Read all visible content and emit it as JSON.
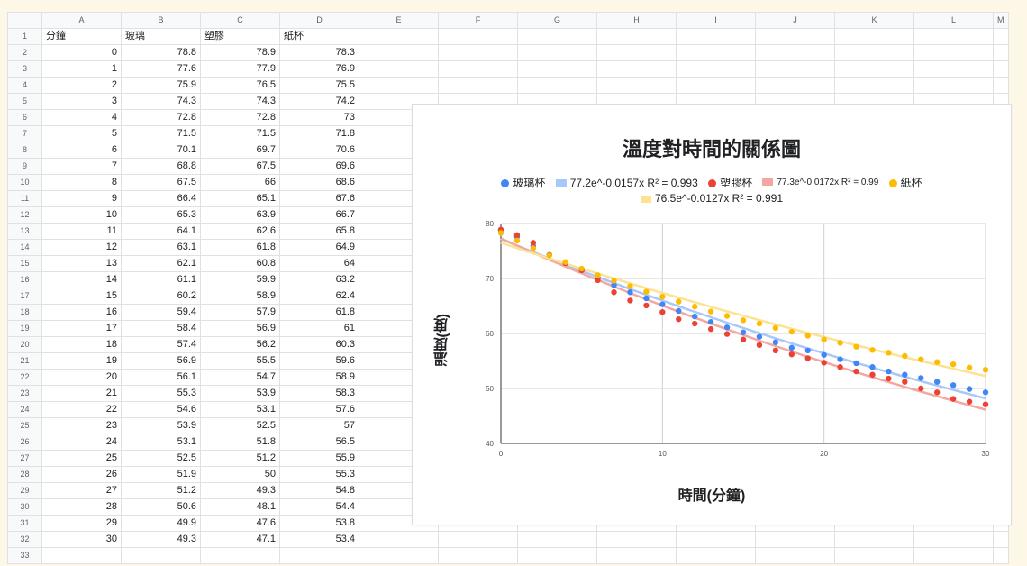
{
  "spreadsheet": {
    "columns": [
      "A",
      "B",
      "C",
      "D",
      "E",
      "F",
      "G",
      "H",
      "I",
      "J",
      "K",
      "L"
    ],
    "header_row": [
      "分鐘",
      "玻璃",
      "塑膠",
      "紙杯"
    ],
    "rows": [
      [
        "0",
        "78.8",
        "78.9",
        "78.3"
      ],
      [
        "1",
        "77.6",
        "77.9",
        "76.9"
      ],
      [
        "2",
        "75.9",
        "76.5",
        "75.5"
      ],
      [
        "3",
        "74.3",
        "74.3",
        "74.2"
      ],
      [
        "4",
        "72.8",
        "72.8",
        "73"
      ],
      [
        "5",
        "71.5",
        "71.5",
        "71.8"
      ],
      [
        "6",
        "70.1",
        "69.7",
        "70.6"
      ],
      [
        "7",
        "68.8",
        "67.5",
        "69.6"
      ],
      [
        "8",
        "67.5",
        "66",
        "68.6"
      ],
      [
        "9",
        "66.4",
        "65.1",
        "67.6"
      ],
      [
        "10",
        "65.3",
        "63.9",
        "66.7"
      ],
      [
        "11",
        "64.1",
        "62.6",
        "65.8"
      ],
      [
        "12",
        "63.1",
        "61.8",
        "64.9"
      ],
      [
        "13",
        "62.1",
        "60.8",
        "64"
      ],
      [
        "14",
        "61.1",
        "59.9",
        "63.2"
      ],
      [
        "15",
        "60.2",
        "58.9",
        "62.4"
      ],
      [
        "16",
        "59.4",
        "57.9",
        "61.8"
      ],
      [
        "17",
        "58.4",
        "56.9",
        "61"
      ],
      [
        "18",
        "57.4",
        "56.2",
        "60.3"
      ],
      [
        "19",
        "56.9",
        "55.5",
        "59.6"
      ],
      [
        "20",
        "56.1",
        "54.7",
        "58.9"
      ],
      [
        "21",
        "55.3",
        "53.9",
        "58.3"
      ],
      [
        "22",
        "54.6",
        "53.1",
        "57.6"
      ],
      [
        "23",
        "53.9",
        "52.5",
        "57"
      ],
      [
        "24",
        "53.1",
        "51.8",
        "56.5"
      ],
      [
        "25",
        "52.5",
        "51.2",
        "55.9"
      ],
      [
        "26",
        "51.9",
        "50",
        "55.3"
      ],
      [
        "27",
        "51.2",
        "49.3",
        "54.8"
      ],
      [
        "28",
        "50.6",
        "48.1",
        "54.4"
      ],
      [
        "29",
        "49.9",
        "47.6",
        "53.8"
      ],
      [
        "30",
        "49.3",
        "47.1",
        "53.4"
      ]
    ]
  },
  "chart_data": {
    "type": "scatter",
    "title": "溫度對時間的關係圖",
    "xlabel": "時間(分鐘)",
    "ylabel": "溫度(度)",
    "xlim": [
      0,
      30
    ],
    "ylim": [
      40,
      80
    ],
    "xticks": [
      "0",
      "10",
      "20",
      "30"
    ],
    "yticks": [
      "40",
      "50",
      "60",
      "70",
      "80"
    ],
    "grid": true,
    "legend_position": "top",
    "series": [
      {
        "name": "玻璃杯",
        "color": "#4285f4",
        "x": [
          0,
          1,
          2,
          3,
          4,
          5,
          6,
          7,
          8,
          9,
          10,
          11,
          12,
          13,
          14,
          15,
          16,
          17,
          18,
          19,
          20,
          21,
          22,
          23,
          24,
          25,
          26,
          27,
          28,
          29,
          30
        ],
        "y": [
          78.8,
          77.6,
          75.9,
          74.3,
          72.8,
          71.5,
          70.1,
          68.8,
          67.5,
          66.4,
          65.3,
          64.1,
          63.1,
          62.1,
          61.1,
          60.2,
          59.4,
          58.4,
          57.4,
          56.9,
          56.1,
          55.3,
          54.6,
          53.9,
          53.1,
          52.5,
          51.9,
          51.2,
          50.6,
          49.9,
          49.3
        ]
      },
      {
        "name": "塑膠杯",
        "color": "#ea4335",
        "x": [
          0,
          1,
          2,
          3,
          4,
          5,
          6,
          7,
          8,
          9,
          10,
          11,
          12,
          13,
          14,
          15,
          16,
          17,
          18,
          19,
          20,
          21,
          22,
          23,
          24,
          25,
          26,
          27,
          28,
          29,
          30
        ],
        "y": [
          78.9,
          77.9,
          76.5,
          74.3,
          72.8,
          71.5,
          69.7,
          67.5,
          66,
          65.1,
          63.9,
          62.6,
          61.8,
          60.8,
          59.9,
          58.9,
          57.9,
          56.9,
          56.2,
          55.5,
          54.7,
          53.9,
          53.1,
          52.5,
          51.8,
          51.2,
          50,
          49.3,
          48.1,
          47.6,
          47.1
        ]
      },
      {
        "name": "紙杯",
        "color": "#fbbc04",
        "x": [
          0,
          1,
          2,
          3,
          4,
          5,
          6,
          7,
          8,
          9,
          10,
          11,
          12,
          13,
          14,
          15,
          16,
          17,
          18,
          19,
          20,
          21,
          22,
          23,
          24,
          25,
          26,
          27,
          28,
          29,
          30
        ],
        "y": [
          78.3,
          76.9,
          75.5,
          74.2,
          73,
          71.8,
          70.6,
          69.6,
          68.6,
          67.6,
          66.7,
          65.8,
          64.9,
          64,
          63.2,
          62.4,
          61.8,
          61,
          60.3,
          59.6,
          58.9,
          58.3,
          57.6,
          57,
          56.5,
          55.9,
          55.3,
          54.8,
          54.4,
          53.8,
          53.4
        ]
      }
    ],
    "trendlines": [
      {
        "label": "77.2e^-0.0157x R² = 0.993",
        "a": 77.2,
        "k": -0.0157,
        "color": "#a8c7fa"
      },
      {
        "label": "77.3e^-0.0172x R² = 0.99",
        "a": 77.3,
        "k": -0.0172,
        "color": "#f4a7a0"
      },
      {
        "label": "76.5e^-0.0127x R² = 0.991",
        "a": 76.5,
        "k": -0.0127,
        "color": "#fde293"
      }
    ]
  }
}
